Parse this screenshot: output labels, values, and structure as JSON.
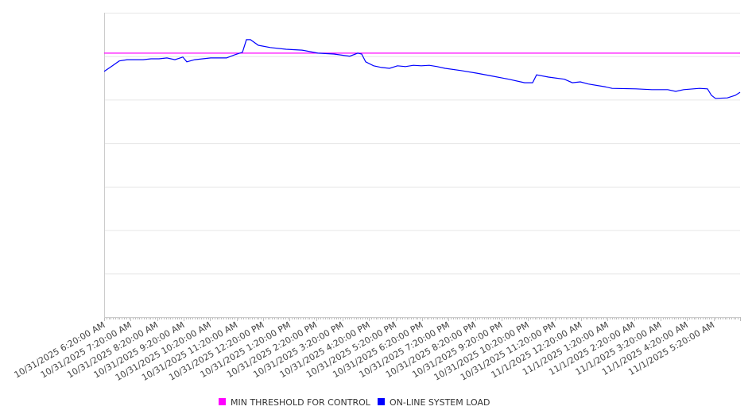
{
  "chart_data": {
    "type": "line",
    "title": "",
    "xlabel": "",
    "ylabel": "",
    "x_unit": "hours since 10/31/2025 6:20:00 AM",
    "xlim": [
      0,
      24
    ],
    "ylim": [
      0,
      7
    ],
    "y_gridlines": [
      0,
      1,
      2,
      3,
      4,
      5,
      6,
      7
    ],
    "y_tick_labels_shown": false,
    "grid": true,
    "legend_position": "bottom-center",
    "x_tick_labels": [
      "10/31/2025 6:20:00 AM",
      "10/31/2025 7:20:00 AM",
      "10/31/2025 8:20:00 AM",
      "10/31/2025 9:20:00 AM",
      "10/31/2025 10:20:00 AM",
      "10/31/2025 11:20:00 AM",
      "10/31/2025 12:20:00 PM",
      "10/31/2025 1:20:00 PM",
      "10/31/2025 2:20:00 PM",
      "10/31/2025 3:20:00 PM",
      "10/31/2025 4:20:00 PM",
      "10/31/2025 5:20:00 PM",
      "10/31/2025 6:20:00 PM",
      "10/31/2025 7:20:00 PM",
      "10/31/2025 8:20:00 PM",
      "10/31/2025 9:20:00 PM",
      "10/31/2025 10:20:00 PM",
      "10/31/2025 11:20:00 PM",
      "11/1/2025 12:20:00 AM",
      "11/1/2025 1:20:00 AM",
      "11/1/2025 2:20:00 AM",
      "11/1/2025 3:20:00 AM",
      "11/1/2025 4:20:00 AM",
      "11/1/2025 5:20:00 AM"
    ],
    "series": [
      {
        "name": "MIN THRESHOLD FOR CONTROL",
        "color": "#ff00ff",
        "x": [
          0,
          24
        ],
        "values": [
          6.07,
          6.07
        ]
      },
      {
        "name": "ON-LINE SYSTEM LOAD",
        "color": "#0000ff",
        "x": [
          0,
          0.27,
          0.57,
          0.87,
          1.17,
          1.47,
          1.77,
          2.07,
          2.37,
          2.67,
          2.97,
          3.12,
          3.42,
          3.72,
          4.02,
          4.32,
          4.62,
          4.92,
          5.22,
          5.37,
          5.52,
          5.82,
          6.27,
          6.87,
          7.47,
          8.07,
          8.67,
          9.27,
          9.57,
          9.72,
          9.87,
          10.17,
          10.47,
          10.77,
          11.07,
          11.37,
          11.67,
          11.97,
          12.27,
          12.57,
          12.87,
          13.47,
          14.07,
          14.67,
          15.27,
          15.87,
          16.17,
          16.32,
          16.77,
          17.37,
          17.67,
          17.97,
          18.27,
          18.87,
          19.17,
          20.07,
          20.67,
          21.27,
          21.57,
          21.87,
          22.47,
          22.77,
          22.92,
          23.07,
          23.52,
          23.82,
          24.0
        ],
        "values": [
          5.65,
          5.76,
          5.89,
          5.92,
          5.92,
          5.92,
          5.94,
          5.94,
          5.96,
          5.92,
          5.98,
          5.87,
          5.92,
          5.94,
          5.96,
          5.96,
          5.96,
          6.03,
          6.09,
          6.38,
          6.38,
          6.25,
          6.2,
          6.16,
          6.14,
          6.07,
          6.05,
          6.0,
          6.07,
          6.05,
          5.87,
          5.78,
          5.74,
          5.72,
          5.78,
          5.76,
          5.79,
          5.78,
          5.79,
          5.76,
          5.72,
          5.67,
          5.61,
          5.54,
          5.47,
          5.39,
          5.39,
          5.57,
          5.52,
          5.47,
          5.39,
          5.41,
          5.36,
          5.3,
          5.26,
          5.25,
          5.23,
          5.23,
          5.19,
          5.23,
          5.26,
          5.25,
          5.1,
          5.03,
          5.04,
          5.1,
          5.17
        ]
      }
    ]
  }
}
